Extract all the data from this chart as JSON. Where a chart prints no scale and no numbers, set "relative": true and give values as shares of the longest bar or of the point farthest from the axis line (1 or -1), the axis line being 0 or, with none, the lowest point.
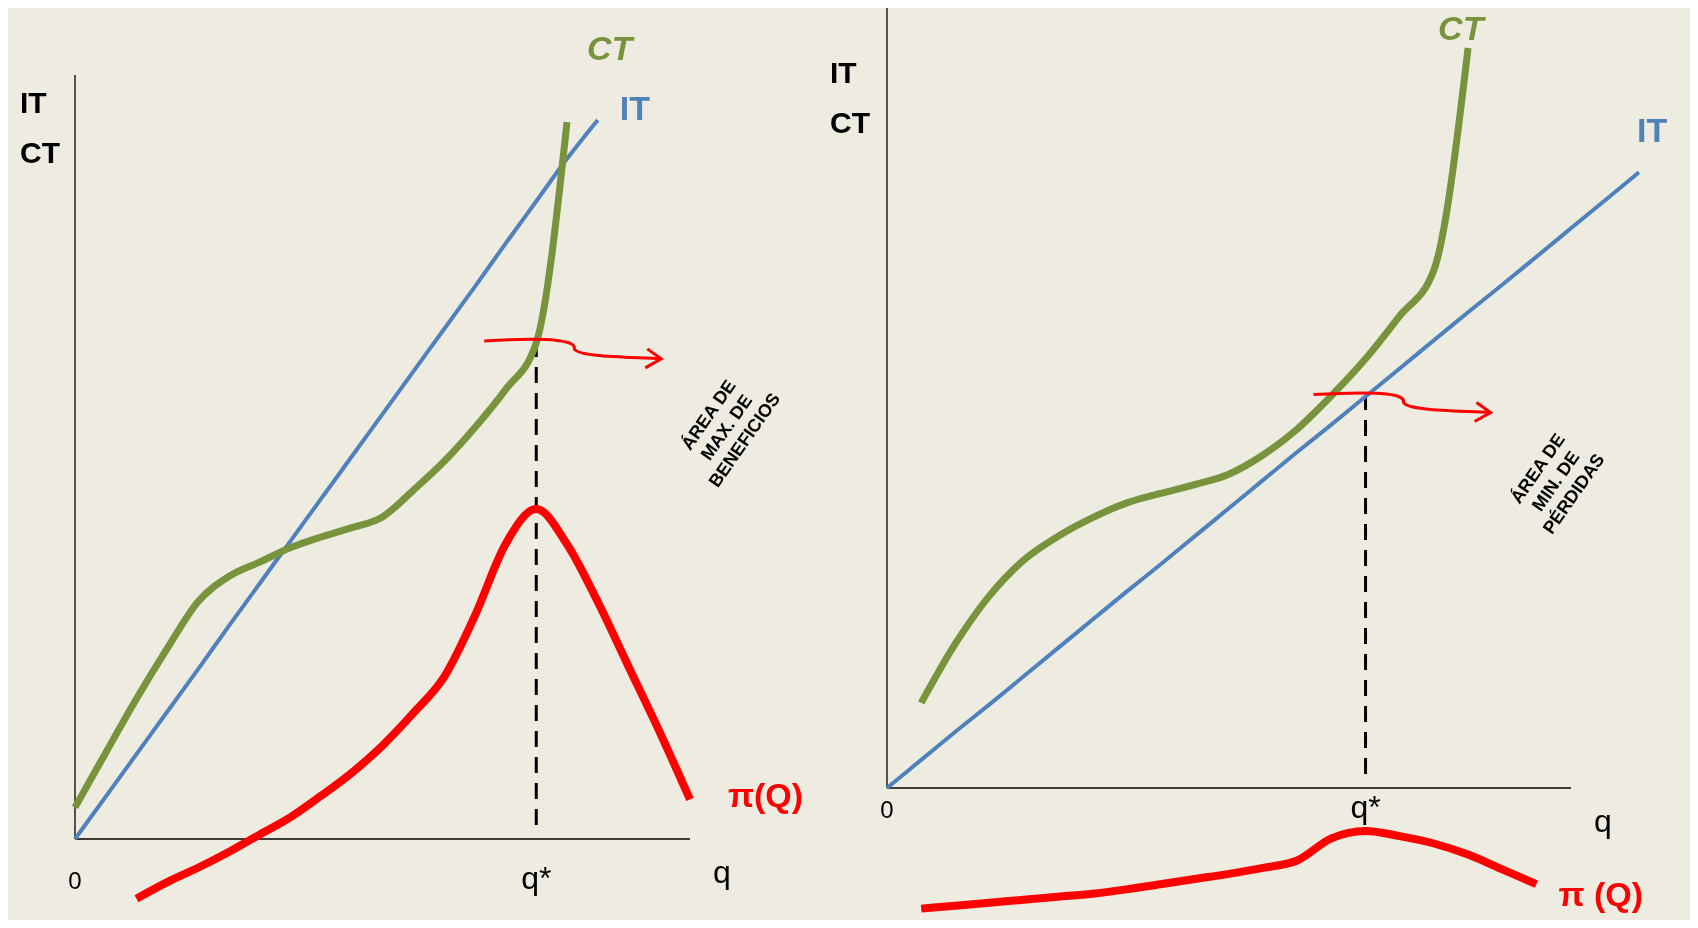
{
  "chart_data": [
    {
      "type": "line",
      "relative": true,
      "categories": [
        "0",
        null,
        null,
        null,
        null,
        null,
        null,
        null,
        null,
        null,
        null,
        null,
        null,
        null,
        null,
        "q*",
        null,
        null,
        null,
        null,
        null
      ],
      "xlabel": "q",
      "ylabel": "IT\nCT",
      "legend": false,
      "series": [
        {
          "name": "IT",
          "color": "#4f81bd",
          "values": [
            0,
            0.059,
            0.118,
            0.177,
            0.236,
            0.296,
            0.355,
            0.414,
            0.473,
            0.532,
            0.591,
            0.65,
            0.709,
            0.768,
            0.828,
            0.887,
            0.946,
            1.0,
            null,
            null,
            null
          ]
        },
        {
          "name": "CT",
          "color": "#77933c",
          "values": [
            0.044,
            0.12,
            0.195,
            0.265,
            0.33,
            0.365,
            0.385,
            0.405,
            0.42,
            0.433,
            0.448,
            0.485,
            0.525,
            0.572,
            0.625,
            0.69,
            0.997,
            null,
            null,
            null,
            null
          ]
        },
        {
          "name": "π(Q)",
          "color": "#ff0000",
          "values": [
            null,
            null,
            -0.083,
            -0.06,
            -0.04,
            -0.018,
            0.006,
            0.03,
            0.06,
            0.092,
            0.13,
            0.175,
            0.225,
            0.31,
            0.41,
            0.459,
            0.41,
            0.33,
            0.24,
            0.15,
            0.055
          ]
        }
      ],
      "ref_lines": [
        {
          "axis": "x",
          "value": "q*",
          "line_style": "dashed",
          "color": "#000000"
        }
      ],
      "annotations": [
        "ÁREA DE\nMAX. DE\nBENEFICIOS"
      ]
    },
    {
      "type": "line",
      "relative": true,
      "categories": [
        "0",
        null,
        null,
        null,
        null,
        null,
        null,
        null,
        null,
        null,
        null,
        null,
        null,
        null,
        "q*",
        null,
        null,
        null,
        null,
        null,
        null,
        null,
        null
      ],
      "xlabel": "q",
      "ylabel": "IT\nCT",
      "legend": false,
      "series": [
        {
          "name": "IT",
          "color": "#4f81bd",
          "values": [
            0,
            0.038,
            0.076,
            0.113,
            0.151,
            0.189,
            0.227,
            0.265,
            0.302,
            0.34,
            0.378,
            0.416,
            0.454,
            0.491,
            0.529,
            0.567,
            0.605,
            0.643,
            0.68,
            0.718,
            0.756,
            0.794,
            0.832
          ]
        },
        {
          "name": "CT",
          "color": "#77933c",
          "values": [
            null,
            0.115,
            0.195,
            0.26,
            0.308,
            0.34,
            0.365,
            0.385,
            0.398,
            0.41,
            0.424,
            0.45,
            0.485,
            0.53,
            0.58,
            0.638,
            0.7,
            1.0,
            null,
            null,
            null,
            null,
            null
          ]
        },
        {
          "name": "π (Q)",
          "color": "#ff0000",
          "values": [
            null,
            -0.163,
            -0.159,
            -0.155,
            -0.151,
            -0.147,
            -0.143,
            -0.137,
            -0.13,
            -0.123,
            -0.116,
            -0.108,
            -0.098,
            -0.068,
            -0.058,
            -0.065,
            -0.075,
            -0.09,
            -0.11,
            -0.13,
            null,
            null,
            null
          ]
        }
      ],
      "ref_lines": [
        {
          "axis": "x",
          "value": "q*",
          "line_style": "dashed",
          "color": "#000000"
        }
      ],
      "annotations": [
        "ÁREA DE\nMIN. DE\nPÉRDIDAS"
      ]
    }
  ]
}
